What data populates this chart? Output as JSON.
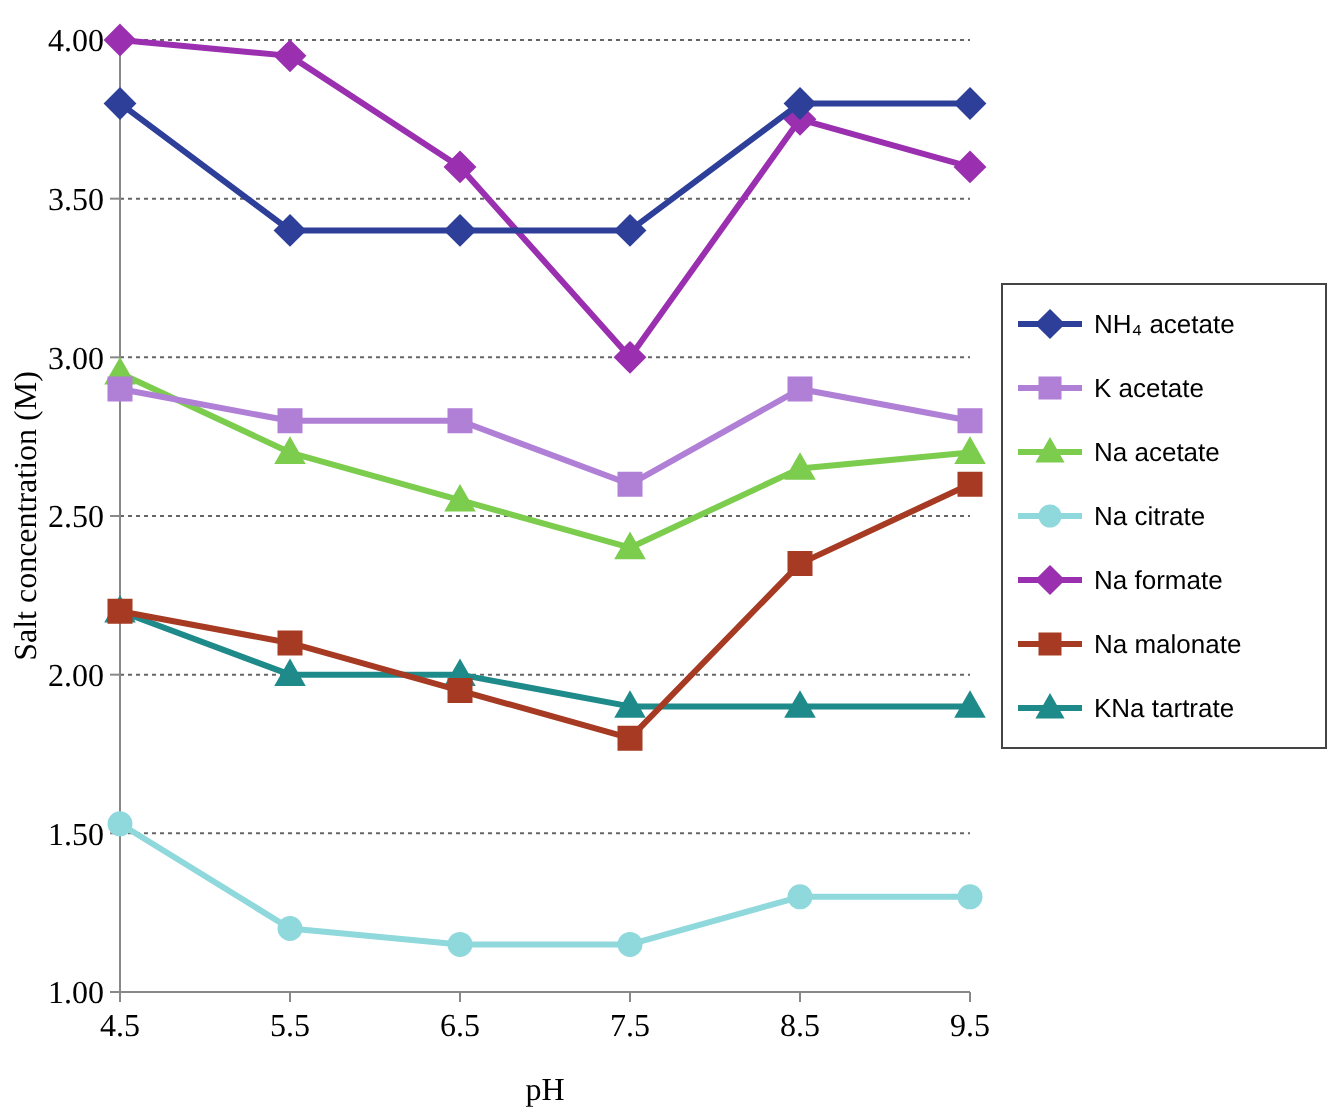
{
  "chart_data": {
    "type": "line",
    "xlabel": "pH",
    "ylabel": "Salt concentration (M)",
    "x": [
      4.5,
      5.5,
      6.5,
      7.5,
      8.5,
      9.5
    ],
    "xlim": [
      4.5,
      9.5
    ],
    "xticks": [
      4.5,
      5.5,
      6.5,
      7.5,
      8.5,
      9.5
    ],
    "ylim": [
      1,
      4
    ],
    "yticks": [
      {
        "value": 1,
        "label": "1.00"
      },
      {
        "value": 1.5,
        "label": "1.50"
      },
      {
        "value": 2,
        "label": "2.00"
      },
      {
        "value": 2.5,
        "label": "2.50"
      },
      {
        "value": 3,
        "label": "3.00"
      },
      {
        "value": 3.5,
        "label": "3.50"
      },
      {
        "value": 4,
        "label": "4.00"
      }
    ],
    "grid": "y",
    "legend": "right",
    "series": [
      {
        "name": "NH₄ acetate",
        "color": "#2e3f99",
        "marker": "diamond",
        "values": [
          3.8,
          3.4,
          3.4,
          3.4,
          3.8,
          3.8
        ]
      },
      {
        "name": "K acetate",
        "color": "#b07fd6",
        "marker": "square",
        "values": [
          2.9,
          2.8,
          2.8,
          2.6,
          2.9,
          2.8
        ]
      },
      {
        "name": "Na acetate",
        "color": "#7ccc4e",
        "marker": "triangle",
        "values": [
          2.95,
          2.7,
          2.55,
          2.4,
          2.65,
          2.7
        ]
      },
      {
        "name": "Na citrate",
        "color": "#8fd8dc",
        "marker": "circle",
        "values": [
          1.53,
          1.2,
          1.15,
          1.15,
          1.3,
          1.3
        ]
      },
      {
        "name": "Na formate",
        "color": "#9a2fb0",
        "marker": "diamond",
        "values": [
          4.0,
          3.95,
          3.6,
          3.0,
          3.75,
          3.6
        ]
      },
      {
        "name": "Na malonate",
        "color": "#a63a22",
        "marker": "square",
        "values": [
          2.2,
          2.1,
          1.95,
          1.8,
          2.35,
          2.6
        ]
      },
      {
        "name": "KNa tartrate",
        "color": "#1f8a8a",
        "marker": "triangle",
        "values": [
          2.2,
          2.0,
          2.0,
          1.9,
          1.9,
          1.9
        ]
      }
    ]
  }
}
